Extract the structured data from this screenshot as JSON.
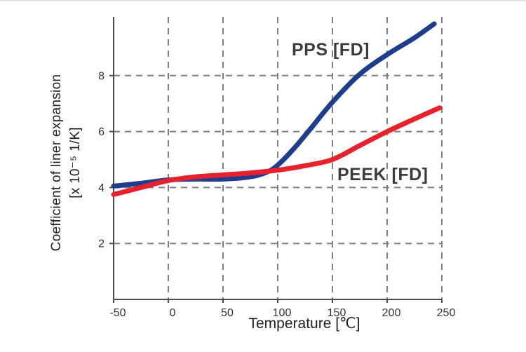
{
  "chart_data": {
    "type": "line",
    "title": "",
    "xlabel": "Temperature [℃]",
    "ylabel": "Coefficient of liner expansion [x 10⁻⁵ 1/K]",
    "ylabel_line1": "Coefficient of liner expansion",
    "ylabel_line2": "[x 10⁻⁵ 1/K]",
    "xlim": [
      -50,
      250
    ],
    "ylim": [
      0,
      10.1
    ],
    "x_ticks": [
      -50,
      0,
      50,
      100,
      150,
      200,
      250
    ],
    "y_ticks": [
      2,
      4,
      6,
      8
    ],
    "grid": "dashed",
    "legend_position": "inline-annotations",
    "axis_color": "#4b4b4b",
    "grid_color": "#7f7f7f",
    "series": [
      {
        "name": "PPS [FD]",
        "color": "#1e3d8d",
        "points": [
          [
            -50,
            4.05
          ],
          [
            -25,
            4.15
          ],
          [
            0,
            4.27
          ],
          [
            25,
            4.3
          ],
          [
            50,
            4.3
          ],
          [
            75,
            4.38
          ],
          [
            90,
            4.55
          ],
          [
            100,
            4.8
          ],
          [
            115,
            5.4
          ],
          [
            130,
            6.1
          ],
          [
            150,
            7.05
          ],
          [
            175,
            8.05
          ],
          [
            200,
            8.75
          ],
          [
            225,
            9.35
          ],
          [
            243,
            9.85
          ]
        ]
      },
      {
        "name": "PEEK [FD]",
        "color": "#e8222c",
        "points": [
          [
            -50,
            3.75
          ],
          [
            -25,
            4.0
          ],
          [
            0,
            4.25
          ],
          [
            25,
            4.38
          ],
          [
            50,
            4.45
          ],
          [
            75,
            4.52
          ],
          [
            100,
            4.62
          ],
          [
            125,
            4.78
          ],
          [
            150,
            5.0
          ],
          [
            175,
            5.5
          ],
          [
            200,
            6.0
          ],
          [
            225,
            6.45
          ],
          [
            248,
            6.85
          ]
        ]
      }
    ]
  }
}
